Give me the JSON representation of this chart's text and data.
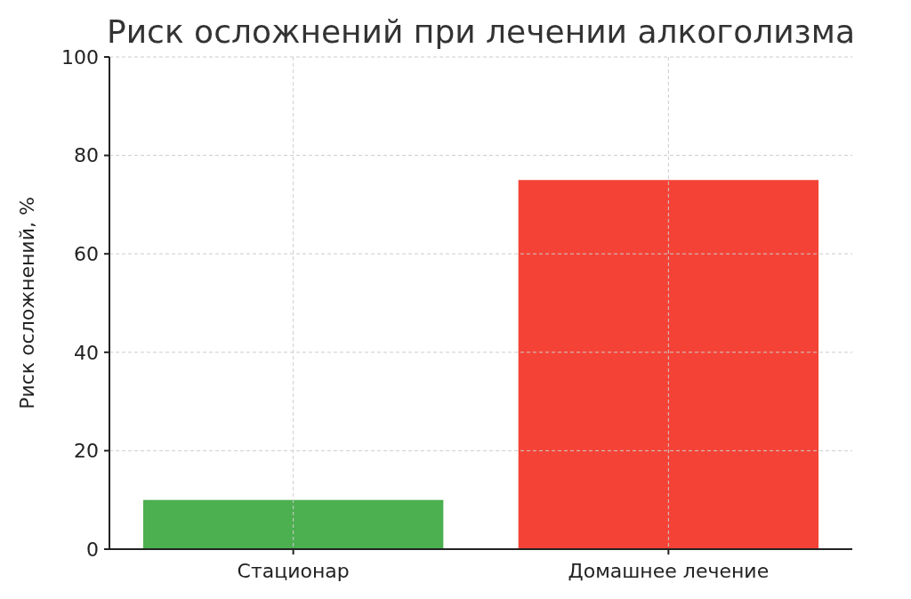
{
  "chart_data": {
    "type": "bar",
    "title": "Риск осложнений при лечении алкоголизма",
    "ylabel": "Риск осложнений, %",
    "categories": [
      "Стационар",
      "Домашнее лечение"
    ],
    "values": [
      10,
      75
    ],
    "colors": [
      "#4caf50",
      "#f44336"
    ],
    "ylim": [
      0,
      100
    ],
    "yticks": [
      0,
      20,
      40,
      60,
      80,
      100
    ],
    "grid": true
  }
}
